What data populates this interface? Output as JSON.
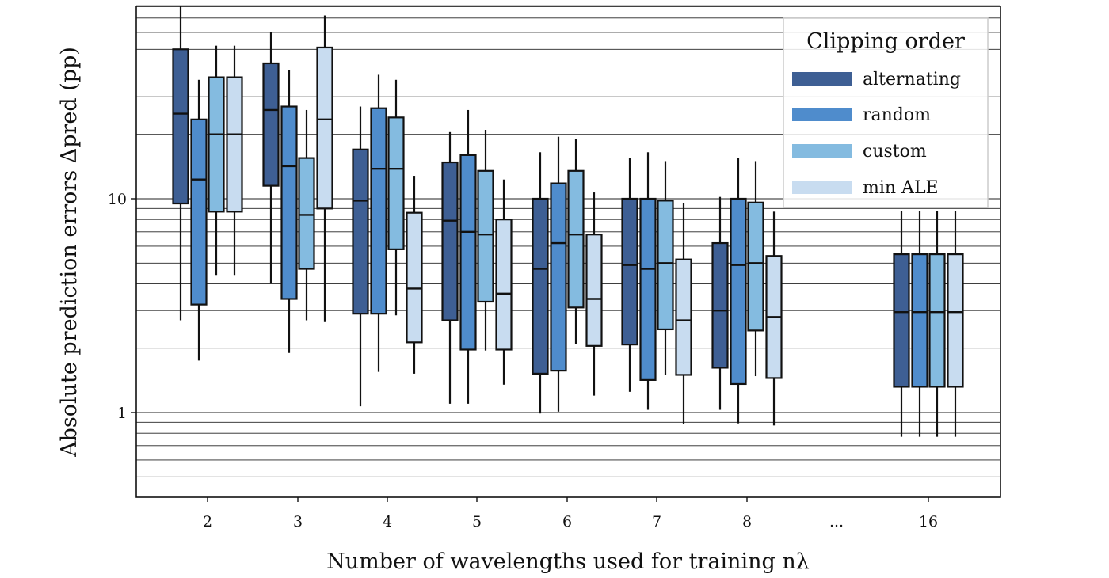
{
  "chart_data": {
    "type": "box",
    "title": "",
    "xlabel": "Number of wavelengths used for training nλ",
    "ylabel": "Absolute prediction errors Δpred (pp)",
    "y_scale": "log",
    "ylim": [
      0.42,
      80
    ],
    "y_ticks": [
      1,
      10
    ],
    "y_tick_labels": [
      "1",
      "10"
    ],
    "grid": "horizontal, major and minor (log)",
    "legend_title": "Clipping order",
    "legend_position": "top-right",
    "categories": [
      "2",
      "3",
      "4",
      "5",
      "6",
      "7",
      "8",
      "...",
      "16"
    ],
    "series": [
      {
        "name": "alternating",
        "color": "#3e5f94",
        "boxes": [
          {
            "x": "2",
            "whislo": 2.7,
            "q1": 9.5,
            "med": 25.0,
            "q3": 50.0,
            "whishi": 80.0
          },
          {
            "x": "3",
            "whislo": 4.0,
            "q1": 11.5,
            "med": 26.0,
            "q3": 43.0,
            "whishi": 60.0
          },
          {
            "x": "4",
            "whislo": 1.07,
            "q1": 2.9,
            "med": 9.8,
            "q3": 17.0,
            "whishi": 27.0
          },
          {
            "x": "5",
            "whislo": 1.1,
            "q1": 2.7,
            "med": 7.9,
            "q3": 14.8,
            "whishi": 20.5
          },
          {
            "x": "6",
            "whislo": 0.99,
            "q1": 1.52,
            "med": 4.7,
            "q3": 10.0,
            "whishi": 16.5
          },
          {
            "x": "7",
            "whislo": 1.25,
            "q1": 2.08,
            "med": 4.9,
            "q3": 10.0,
            "whishi": 15.5
          },
          {
            "x": "8",
            "whislo": 1.03,
            "q1": 1.62,
            "med": 3.0,
            "q3": 6.2,
            "whishi": 10.2
          },
          {
            "x": "16",
            "whislo": 0.77,
            "q1": 1.32,
            "med": 2.95,
            "q3": 5.5,
            "whishi": 8.8
          }
        ]
      },
      {
        "name": "random",
        "color": "#4f8ccc",
        "boxes": [
          {
            "x": "2",
            "whislo": 1.75,
            "q1": 3.2,
            "med": 12.3,
            "q3": 23.5,
            "whishi": 36.0
          },
          {
            "x": "3",
            "whislo": 1.9,
            "q1": 3.4,
            "med": 14.2,
            "q3": 27.0,
            "whishi": 40.0
          },
          {
            "x": "4",
            "whislo": 1.55,
            "q1": 2.9,
            "med": 13.8,
            "q3": 26.5,
            "whishi": 38.0
          },
          {
            "x": "5",
            "whislo": 1.1,
            "q1": 1.97,
            "med": 7.0,
            "q3": 16.0,
            "whishi": 26.0
          },
          {
            "x": "6",
            "whislo": 1.01,
            "q1": 1.57,
            "med": 6.2,
            "q3": 11.8,
            "whishi": 19.5
          },
          {
            "x": "7",
            "whislo": 1.03,
            "q1": 1.42,
            "med": 4.7,
            "q3": 10.0,
            "whishi": 16.5
          },
          {
            "x": "8",
            "whislo": 0.89,
            "q1": 1.36,
            "med": 4.9,
            "q3": 10.0,
            "whishi": 15.5
          },
          {
            "x": "16",
            "whislo": 0.77,
            "q1": 1.32,
            "med": 2.95,
            "q3": 5.5,
            "whishi": 8.8
          }
        ]
      },
      {
        "name": "custom",
        "color": "#84bbe0",
        "boxes": [
          {
            "x": "2",
            "whislo": 4.4,
            "q1": 8.7,
            "med": 20.0,
            "q3": 37.0,
            "whishi": 52.0
          },
          {
            "x": "3",
            "whislo": 2.7,
            "q1": 4.7,
            "med": 8.4,
            "q3": 15.5,
            "whishi": 26.0
          },
          {
            "x": "4",
            "whislo": 2.85,
            "q1": 5.8,
            "med": 13.8,
            "q3": 24.0,
            "whishi": 36.0
          },
          {
            "x": "5",
            "whislo": 1.95,
            "q1": 3.3,
            "med": 6.8,
            "q3": 13.5,
            "whishi": 21.0
          },
          {
            "x": "6",
            "whislo": 2.1,
            "q1": 3.1,
            "med": 6.8,
            "q3": 13.5,
            "whishi": 19.0
          },
          {
            "x": "7",
            "whislo": 1.5,
            "q1": 2.45,
            "med": 5.0,
            "q3": 9.8,
            "whishi": 15.0
          },
          {
            "x": "8",
            "whislo": 1.48,
            "q1": 2.42,
            "med": 5.0,
            "q3": 9.6,
            "whishi": 15.0
          },
          {
            "x": "16",
            "whislo": 0.77,
            "q1": 1.32,
            "med": 2.95,
            "q3": 5.5,
            "whishi": 8.8
          }
        ]
      },
      {
        "name": "min ALE",
        "color": "#c8dcf0",
        "boxes": [
          {
            "x": "2",
            "whislo": 4.4,
            "q1": 8.7,
            "med": 20.0,
            "q3": 37.0,
            "whishi": 52.0
          },
          {
            "x": "3",
            "whislo": 2.65,
            "q1": 9.0,
            "med": 23.5,
            "q3": 51.0,
            "whishi": 72.0
          },
          {
            "x": "4",
            "whislo": 1.52,
            "q1": 2.13,
            "med": 3.8,
            "q3": 8.6,
            "whishi": 12.8
          },
          {
            "x": "5",
            "whislo": 1.35,
            "q1": 1.97,
            "med": 3.6,
            "q3": 8.0,
            "whishi": 12.3
          },
          {
            "x": "6",
            "whislo": 1.2,
            "q1": 2.05,
            "med": 3.4,
            "q3": 6.8,
            "whishi": 10.7
          },
          {
            "x": "7",
            "whislo": 0.88,
            "q1": 1.5,
            "med": 2.7,
            "q3": 5.2,
            "whishi": 9.5
          },
          {
            "x": "8",
            "whislo": 0.87,
            "q1": 1.45,
            "med": 2.8,
            "q3": 5.4,
            "whishi": 8.7
          },
          {
            "x": "16",
            "whislo": 0.77,
            "q1": 1.32,
            "med": 2.95,
            "q3": 5.5,
            "whishi": 8.8
          }
        ]
      }
    ]
  }
}
